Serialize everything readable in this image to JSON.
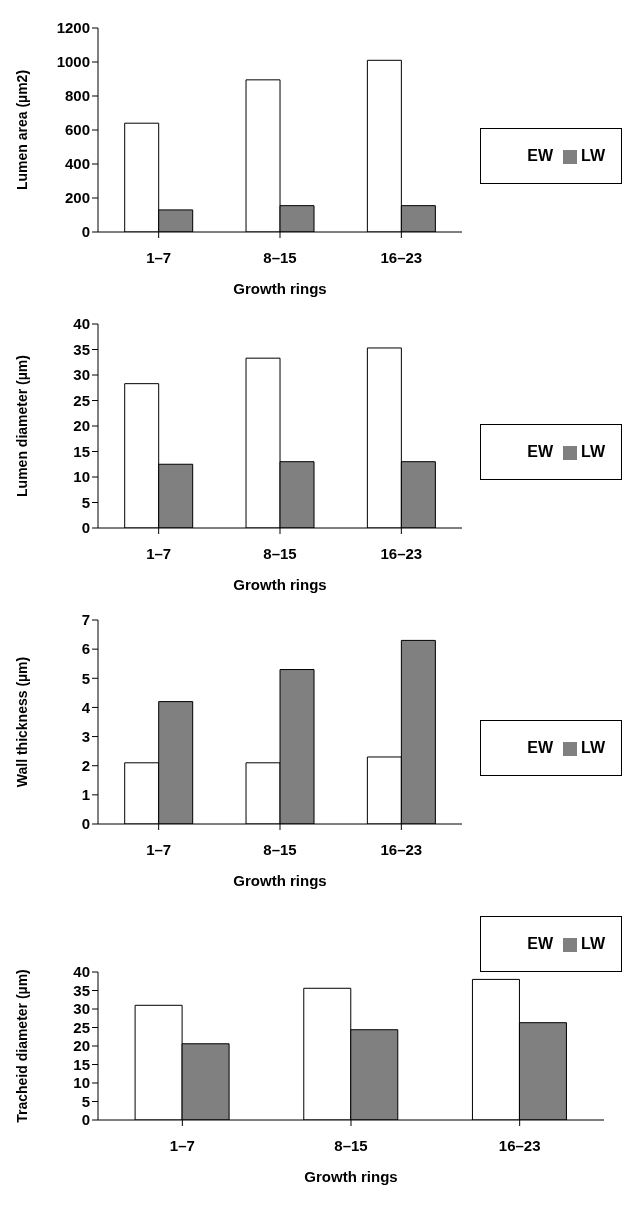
{
  "chart_data": [
    {
      "type": "bar",
      "categories": [
        "1–7",
        "8–15",
        "16–23"
      ],
      "xlabel": "Growth rings",
      "ylabel": "Lumen area (µm2)",
      "ylim": [
        0,
        1200
      ],
      "yticks": [
        0,
        200,
        400,
        600,
        800,
        1000,
        1200
      ],
      "legend": "right",
      "series": [
        {
          "name": "EW",
          "color": "#ffffff",
          "values": [
            640,
            895,
            1010
          ]
        },
        {
          "name": "LW",
          "color": "#808080",
          "values": [
            130,
            155,
            155
          ]
        }
      ]
    },
    {
      "type": "bar",
      "categories": [
        "1–7",
        "8–15",
        "16–23"
      ],
      "xlabel": "Growth rings",
      "ylabel": "Lumen diameter (µm)",
      "ylim": [
        0,
        40
      ],
      "yticks": [
        0,
        5,
        10,
        15,
        20,
        25,
        30,
        35,
        40
      ],
      "legend": "right",
      "series": [
        {
          "name": "EW",
          "color": "#ffffff",
          "values": [
            28.3,
            33.3,
            35.3
          ]
        },
        {
          "name": "LW",
          "color": "#808080",
          "values": [
            12.5,
            13,
            13
          ]
        }
      ]
    },
    {
      "type": "bar",
      "categories": [
        "1–7",
        "8–15",
        "16–23"
      ],
      "xlabel": "Growth rings",
      "ylabel": "Wall thickness (µm)",
      "ylim": [
        0,
        7
      ],
      "yticks": [
        0,
        1,
        2,
        3,
        4,
        5,
        6,
        7
      ],
      "legend": "right",
      "series": [
        {
          "name": "EW",
          "color": "#ffffff",
          "values": [
            2.1,
            2.1,
            2.3
          ]
        },
        {
          "name": "LW",
          "color": "#808080",
          "values": [
            4.2,
            5.3,
            6.3
          ]
        }
      ]
    },
    {
      "type": "bar",
      "categories": [
        "1–7",
        "8–15",
        "16–23"
      ],
      "xlabel": "Growth rings",
      "ylabel": "Tracheid diameter (µm)",
      "ylim": [
        0,
        40
      ],
      "yticks": [
        0,
        5,
        10,
        15,
        20,
        25,
        30,
        35,
        40
      ],
      "legend": "top right",
      "series": [
        {
          "name": "EW",
          "color": "#ffffff",
          "values": [
            31,
            35.6,
            38
          ]
        },
        {
          "name": "LW",
          "color": "#808080",
          "values": [
            20.6,
            24.4,
            26.3
          ]
        }
      ]
    }
  ]
}
